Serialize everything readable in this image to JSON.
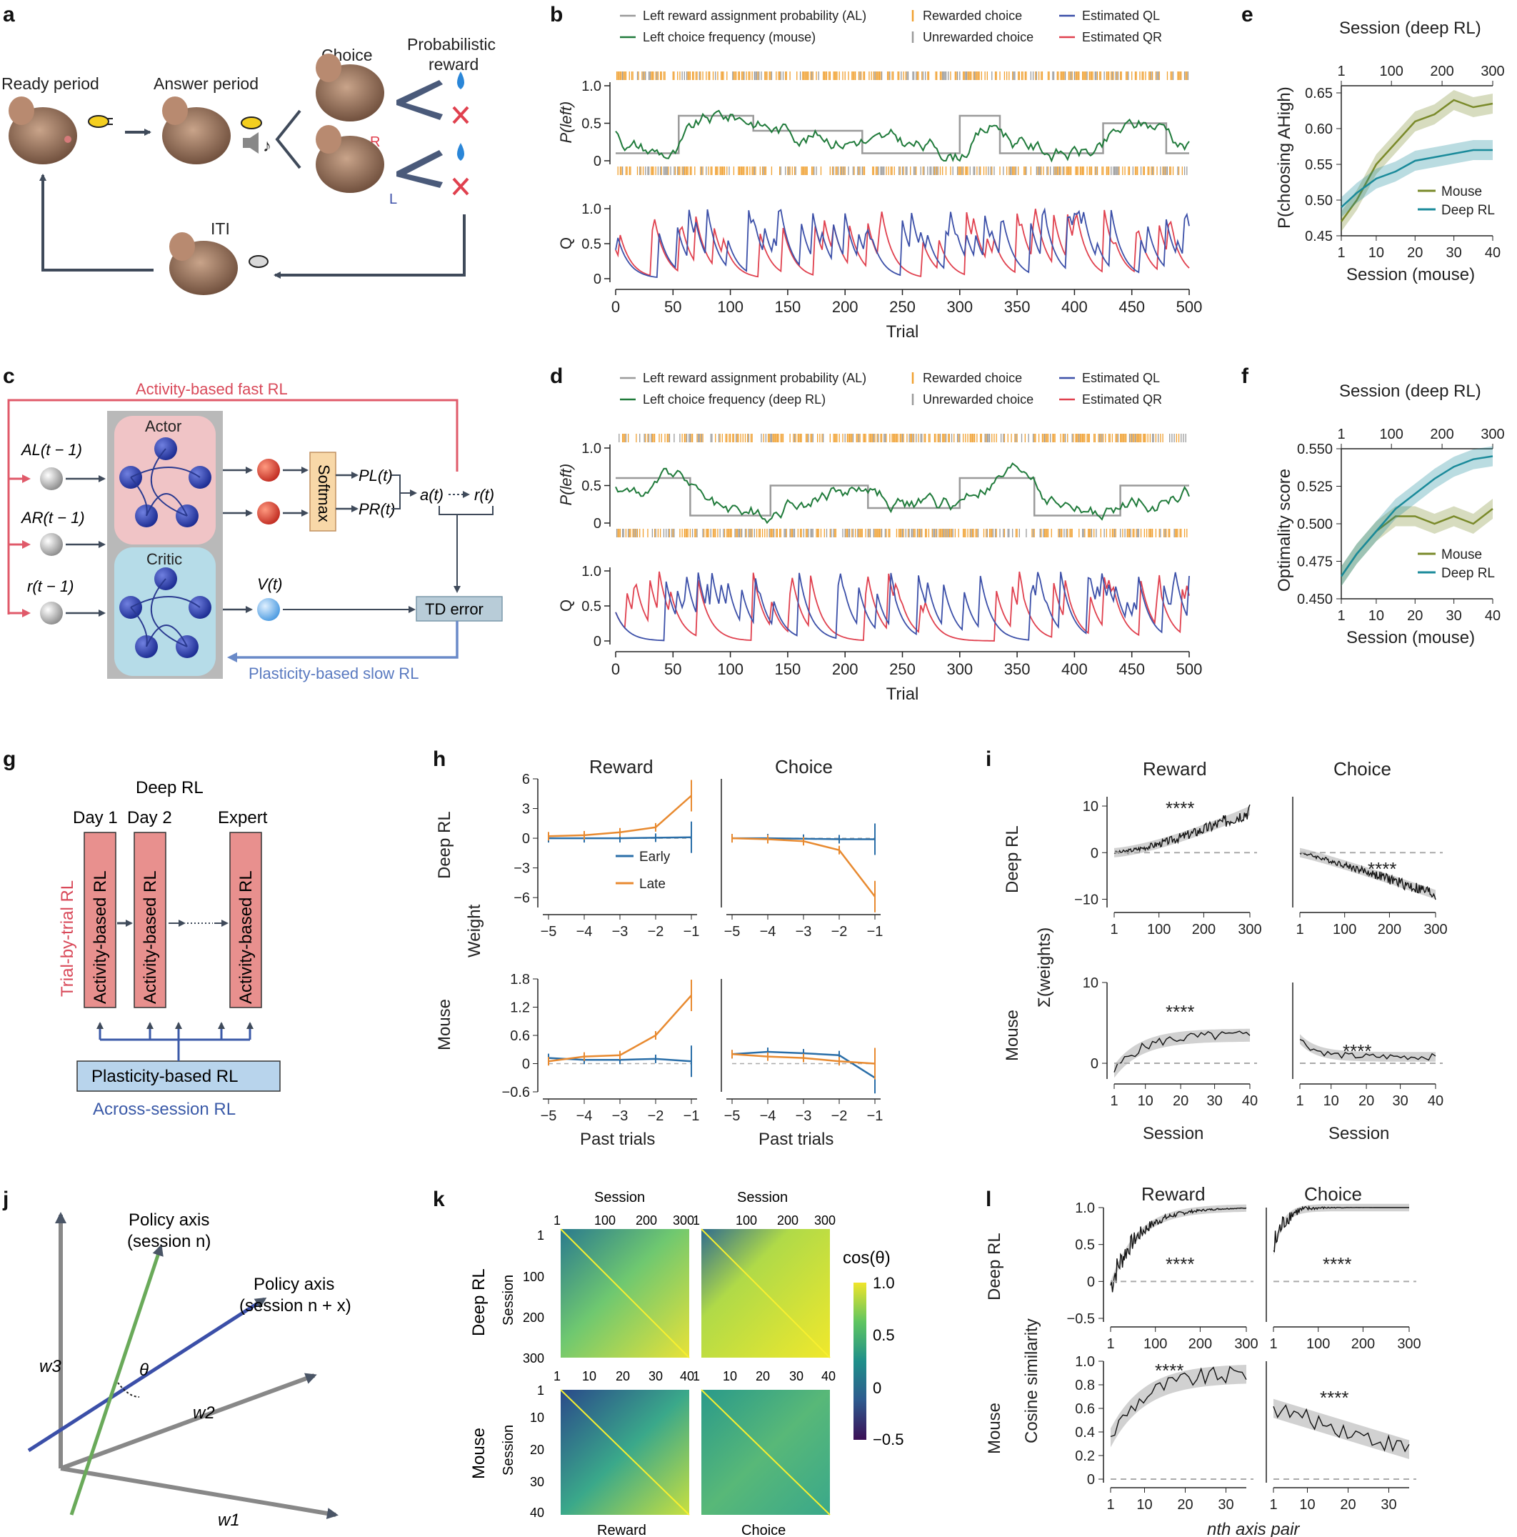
{
  "panel_letters": {
    "a": "a",
    "b": "b",
    "c": "c",
    "d": "d",
    "e": "e",
    "f": "f",
    "g": "g",
    "h": "h",
    "i": "i",
    "j": "j",
    "k": "k",
    "l": "l"
  },
  "panel_a": {
    "ready": "Ready period",
    "answer": "Answer period",
    "choice": "Choice",
    "reward_line1": "Probabilistic",
    "reward_line2": "reward",
    "iti": "ITI",
    "r": "R",
    "l": "L"
  },
  "panel_b": {
    "legend": [
      "Left reward assignment probability (AL)",
      "Left choice frequency (mouse)",
      "Rewarded choice",
      "Unrewarded choice",
      "Estimated QL",
      "Estimated QR"
    ],
    "ylabel_top": "P(left)",
    "ylabel_bottom": "Q",
    "xlabel": "Trial"
  },
  "panel_d": {
    "legend": [
      "Left reward assignment probability (AL)",
      "Left choice frequency (deep RL)",
      "Rewarded choice",
      "Unrewarded choice",
      "Estimated QL",
      "Estimated QR"
    ],
    "ylabel_top": "P(left)",
    "ylabel_bottom": "Q",
    "xlabel": "Trial"
  },
  "panel_c": {
    "fast": "Activity-based fast RL",
    "slow": "Plasticity-based slow RL",
    "actor": "Actor",
    "critic": "Critic",
    "softmax": "Softmax",
    "inputs": [
      "AL(t − 1)",
      "AR(t − 1)",
      "r(t − 1)"
    ],
    "pl": "PL(t)",
    "pr": "PR(t)",
    "vt": "V(t)",
    "at": "a(t)",
    "rt": "r(t)",
    "td": "TD error"
  },
  "panel_e": {
    "top_label": "Session (deep RL)",
    "bottom_label": "Session (mouse)",
    "ylabel": "P(choosing AHigh)",
    "legend": [
      "Mouse",
      "Deep RL"
    ]
  },
  "panel_f": {
    "top_label": "Session (deep RL)",
    "bottom_label": "Session (mouse)",
    "ylabel": "Optimality score",
    "legend": [
      "Mouse",
      "Deep RL"
    ]
  },
  "panel_g": {
    "title": "Deep RL",
    "days": [
      "Day 1",
      "Day 2",
      "Expert"
    ],
    "box": "Activity-based RL",
    "side": "Trial-by-trial RL",
    "plasticity": "Plasticity-based RL",
    "across": "Across-session RL"
  },
  "panel_h": {
    "titles": [
      "Reward",
      "Choice"
    ],
    "rows": [
      "Deep RL",
      "Mouse"
    ],
    "ylabel": "Weight",
    "xlabel": "Past trials",
    "legend": [
      "Early",
      "Late"
    ]
  },
  "panel_i": {
    "titles": [
      "Reward",
      "Choice"
    ],
    "rows": [
      "Deep RL",
      "Mouse"
    ],
    "ylabel": "Σ(weights)",
    "xlabel": "Session",
    "stars": "****"
  },
  "panel_j": {
    "axis_n_1": "Policy axis",
    "axis_n_2": "(session n)",
    "axis_nx_1": "Policy axis",
    "axis_nx_2": "(session n + x)",
    "theta": "θ",
    "w1": "w1",
    "w2": "w2",
    "w3": "w3"
  },
  "panel_k": {
    "top": "Session",
    "row_label": "Session",
    "rows": [
      "Deep RL",
      "Mouse"
    ],
    "bottom": [
      "Reward",
      "Choice"
    ],
    "cbar_label": "cos(θ)",
    "cbar_ticks": [
      "1.0",
      "0.5",
      "0",
      "−0.5"
    ]
  },
  "panel_l": {
    "titles": [
      "Reward",
      "Choice"
    ],
    "rows": [
      "Deep RL",
      "Mouse"
    ],
    "ylabel": "Cosine similarity",
    "xlabel": "nth axis pair",
    "stars": "****"
  },
  "colors": {
    "gray": "#9a9a9a",
    "green": "#1f7a3a",
    "orange": "#f0a030",
    "blue": "#3b4fa8",
    "red": "#e0404e",
    "olive": "#7a8a2a",
    "teal": "#1a8a9a",
    "early": "#2a6ea8",
    "late": "#e88a30",
    "fast": "#e05a6a",
    "slow": "#6a8ac8"
  },
  "chart_data": [
    {
      "panel": "b",
      "type": "line",
      "xlabel": "Trial",
      "xlim": [
        0,
        500
      ],
      "xticks": [
        0,
        50,
        100,
        150,
        200,
        250,
        300,
        350,
        400,
        450,
        500
      ],
      "top_ylim": [
        0,
        1
      ],
      "top_yticks": [
        0,
        0.5,
        1.0
      ],
      "series": [
        {
          "name": "Left reward assignment probability (AL)",
          "blocks": [
            [
              0,
              55,
              0.1
            ],
            [
              55,
              120,
              0.6
            ],
            [
              120,
              215,
              0.4
            ],
            [
              215,
              255,
              0.1
            ],
            [
              255,
              300,
              0.1
            ],
            [
              300,
              335,
              0.6
            ],
            [
              335,
              425,
              0.1
            ],
            [
              425,
              480,
              0.5
            ],
            [
              480,
              500,
              0.1
            ]
          ]
        }
      ],
      "bottom_ylim": [
        0,
        1
      ],
      "bottom_yticks": [
        0,
        0.5,
        1.0
      ]
    },
    {
      "panel": "d",
      "type": "line",
      "xlabel": "Trial",
      "xlim": [
        0,
        500
      ],
      "xticks": [
        0,
        50,
        100,
        150,
        200,
        250,
        300,
        350,
        400,
        450,
        500
      ],
      "top_ylim": [
        0,
        1
      ],
      "top_yticks": [
        0,
        0.5,
        1.0
      ],
      "series": [
        {
          "name": "Left reward assignment probability (AL)",
          "blocks": [
            [
              0,
              65,
              0.6
            ],
            [
              65,
              135,
              0.1
            ],
            [
              135,
              220,
              0.5
            ],
            [
              220,
              300,
              0.2
            ],
            [
              300,
              365,
              0.6
            ],
            [
              365,
              440,
              0.1
            ],
            [
              440,
              500,
              0.5
            ]
          ]
        }
      ],
      "bottom_ylim": [
        0,
        1
      ],
      "bottom_yticks": [
        0,
        0.5,
        1.0
      ]
    },
    {
      "panel": "e",
      "type": "line",
      "xlim": [
        1,
        40
      ],
      "xticks": [
        1,
        10,
        20,
        30,
        40
      ],
      "top_xticks": [
        1,
        100,
        200,
        300
      ],
      "ylim": [
        0.45,
        0.66
      ],
      "yticks": [
        0.45,
        0.5,
        0.55,
        0.6,
        0.65
      ],
      "series": [
        {
          "name": "Mouse",
          "x": [
            1,
            5,
            10,
            15,
            20,
            25,
            30,
            35,
            40
          ],
          "y": [
            0.47,
            0.5,
            0.55,
            0.58,
            0.61,
            0.62,
            0.64,
            0.63,
            0.635
          ]
        },
        {
          "name": "Deep RL",
          "x": [
            1,
            5,
            10,
            15,
            20,
            25,
            30,
            35,
            40
          ],
          "y": [
            0.49,
            0.51,
            0.53,
            0.54,
            0.555,
            0.56,
            0.565,
            0.57,
            0.57
          ]
        }
      ]
    },
    {
      "panel": "f",
      "type": "line",
      "xlim": [
        1,
        40
      ],
      "xticks": [
        1,
        10,
        20,
        30,
        40
      ],
      "top_xticks": [
        1,
        100,
        200,
        300
      ],
      "ylim": [
        0.45,
        0.55
      ],
      "yticks": [
        0.45,
        0.475,
        0.5,
        0.525,
        0.55
      ],
      "series": [
        {
          "name": "Mouse",
          "x": [
            1,
            5,
            10,
            15,
            20,
            25,
            30,
            35,
            40
          ],
          "y": [
            0.465,
            0.48,
            0.495,
            0.505,
            0.505,
            0.5,
            0.505,
            0.5,
            0.51
          ]
        },
        {
          "name": "Deep RL",
          "x": [
            1,
            5,
            10,
            15,
            20,
            25,
            30,
            35,
            40
          ],
          "y": [
            0.465,
            0.48,
            0.495,
            0.51,
            0.52,
            0.53,
            0.538,
            0.543,
            0.545
          ]
        }
      ]
    },
    {
      "panel": "h-deep-reward",
      "type": "line",
      "x": [
        -5,
        -4,
        -3,
        -2,
        -1
      ],
      "ylim": [
        -7,
        6
      ],
      "yticks": [
        -6,
        -3,
        0,
        3,
        6
      ],
      "series": [
        {
          "name": "Early",
          "y": [
            0,
            0,
            0,
            0.05,
            0.1
          ]
        },
        {
          "name": "Late",
          "y": [
            0.2,
            0.3,
            0.6,
            1.1,
            4.3
          ]
        }
      ]
    },
    {
      "panel": "h-deep-choice",
      "type": "line",
      "x": [
        -5,
        -4,
        -3,
        -2,
        -1
      ],
      "ylim": [
        -7,
        6
      ],
      "series": [
        {
          "name": "Early",
          "y": [
            0,
            0,
            -0.05,
            -0.1,
            -0.1
          ]
        },
        {
          "name": "Late",
          "y": [
            0,
            -0.1,
            -0.3,
            -1.2,
            -5.9
          ]
        }
      ]
    },
    {
      "panel": "h-mouse-reward",
      "type": "line",
      "x": [
        -5,
        -4,
        -3,
        -2,
        -1
      ],
      "ylim": [
        -0.6,
        1.8
      ],
      "yticks": [
        -0.6,
        0,
        0.6,
        1.2,
        1.8
      ],
      "series": [
        {
          "name": "Early",
          "y": [
            0.12,
            0.08,
            0.08,
            0.1,
            0.05
          ]
        },
        {
          "name": "Late",
          "y": [
            0.05,
            0.15,
            0.18,
            0.6,
            1.45
          ]
        }
      ]
    },
    {
      "panel": "h-mouse-choice",
      "type": "line",
      "x": [
        -5,
        -4,
        -3,
        -2,
        -1
      ],
      "ylim": [
        -0.6,
        1.8
      ],
      "series": [
        {
          "name": "Early",
          "y": [
            0.2,
            0.25,
            0.22,
            0.18,
            -0.3
          ]
        },
        {
          "name": "Late",
          "y": [
            0.2,
            0.15,
            0.12,
            0.05,
            0
          ]
        }
      ]
    }
  ]
}
